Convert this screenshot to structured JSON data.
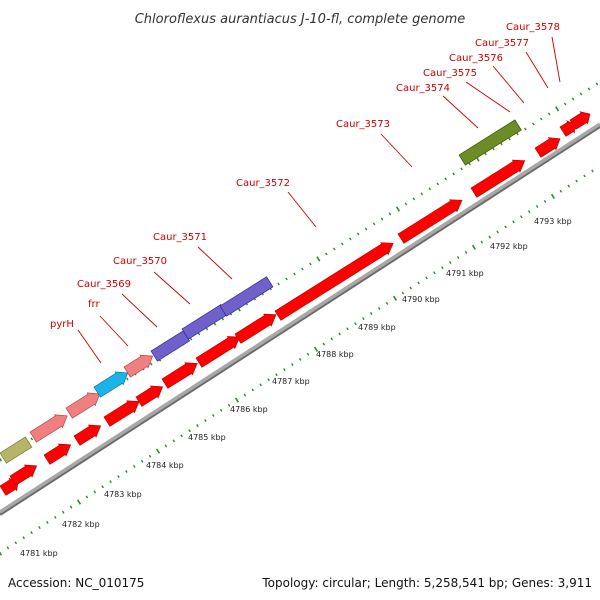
{
  "title": "Chloroflexus aurantiacus J-10-fl, complete genome",
  "accession_text": "Accession: NC_010175",
  "topology_text": "Topology: circular; Length: 5,258,541 bp; Genes: 3,911",
  "colors": {
    "backbone": "#a8a8a8",
    "ticks": "#2d8a2d",
    "label": "#cc0000",
    "leader": "#cc0000",
    "cds_red": "#ff0000",
    "pink": "#f08080",
    "cyan": "#1cb4e8",
    "purple": "#7060cc",
    "olive_green": "#6e8c26",
    "khaki": "#b4b46a"
  },
  "kbp_labels": [
    "4781 kbp",
    "4782 kbp",
    "4783 kbp",
    "4784 kbp",
    "4785 kbp",
    "4786 kbp",
    "4787 kbp",
    "4788 kbp",
    "4789 kbp",
    "4790 kbp",
    "4791 kbp",
    "4792 kbp",
    "4793 kbp"
  ],
  "gene_labels": [
    "pyrH",
    "frr",
    "Caur_3569",
    "Caur_3570",
    "Caur_3571",
    "Caur_3572",
    "Caur_3573",
    "Caur_3574",
    "Caur_3575",
    "Caur_3576",
    "Caur_3577",
    "Caur_3578"
  ]
}
